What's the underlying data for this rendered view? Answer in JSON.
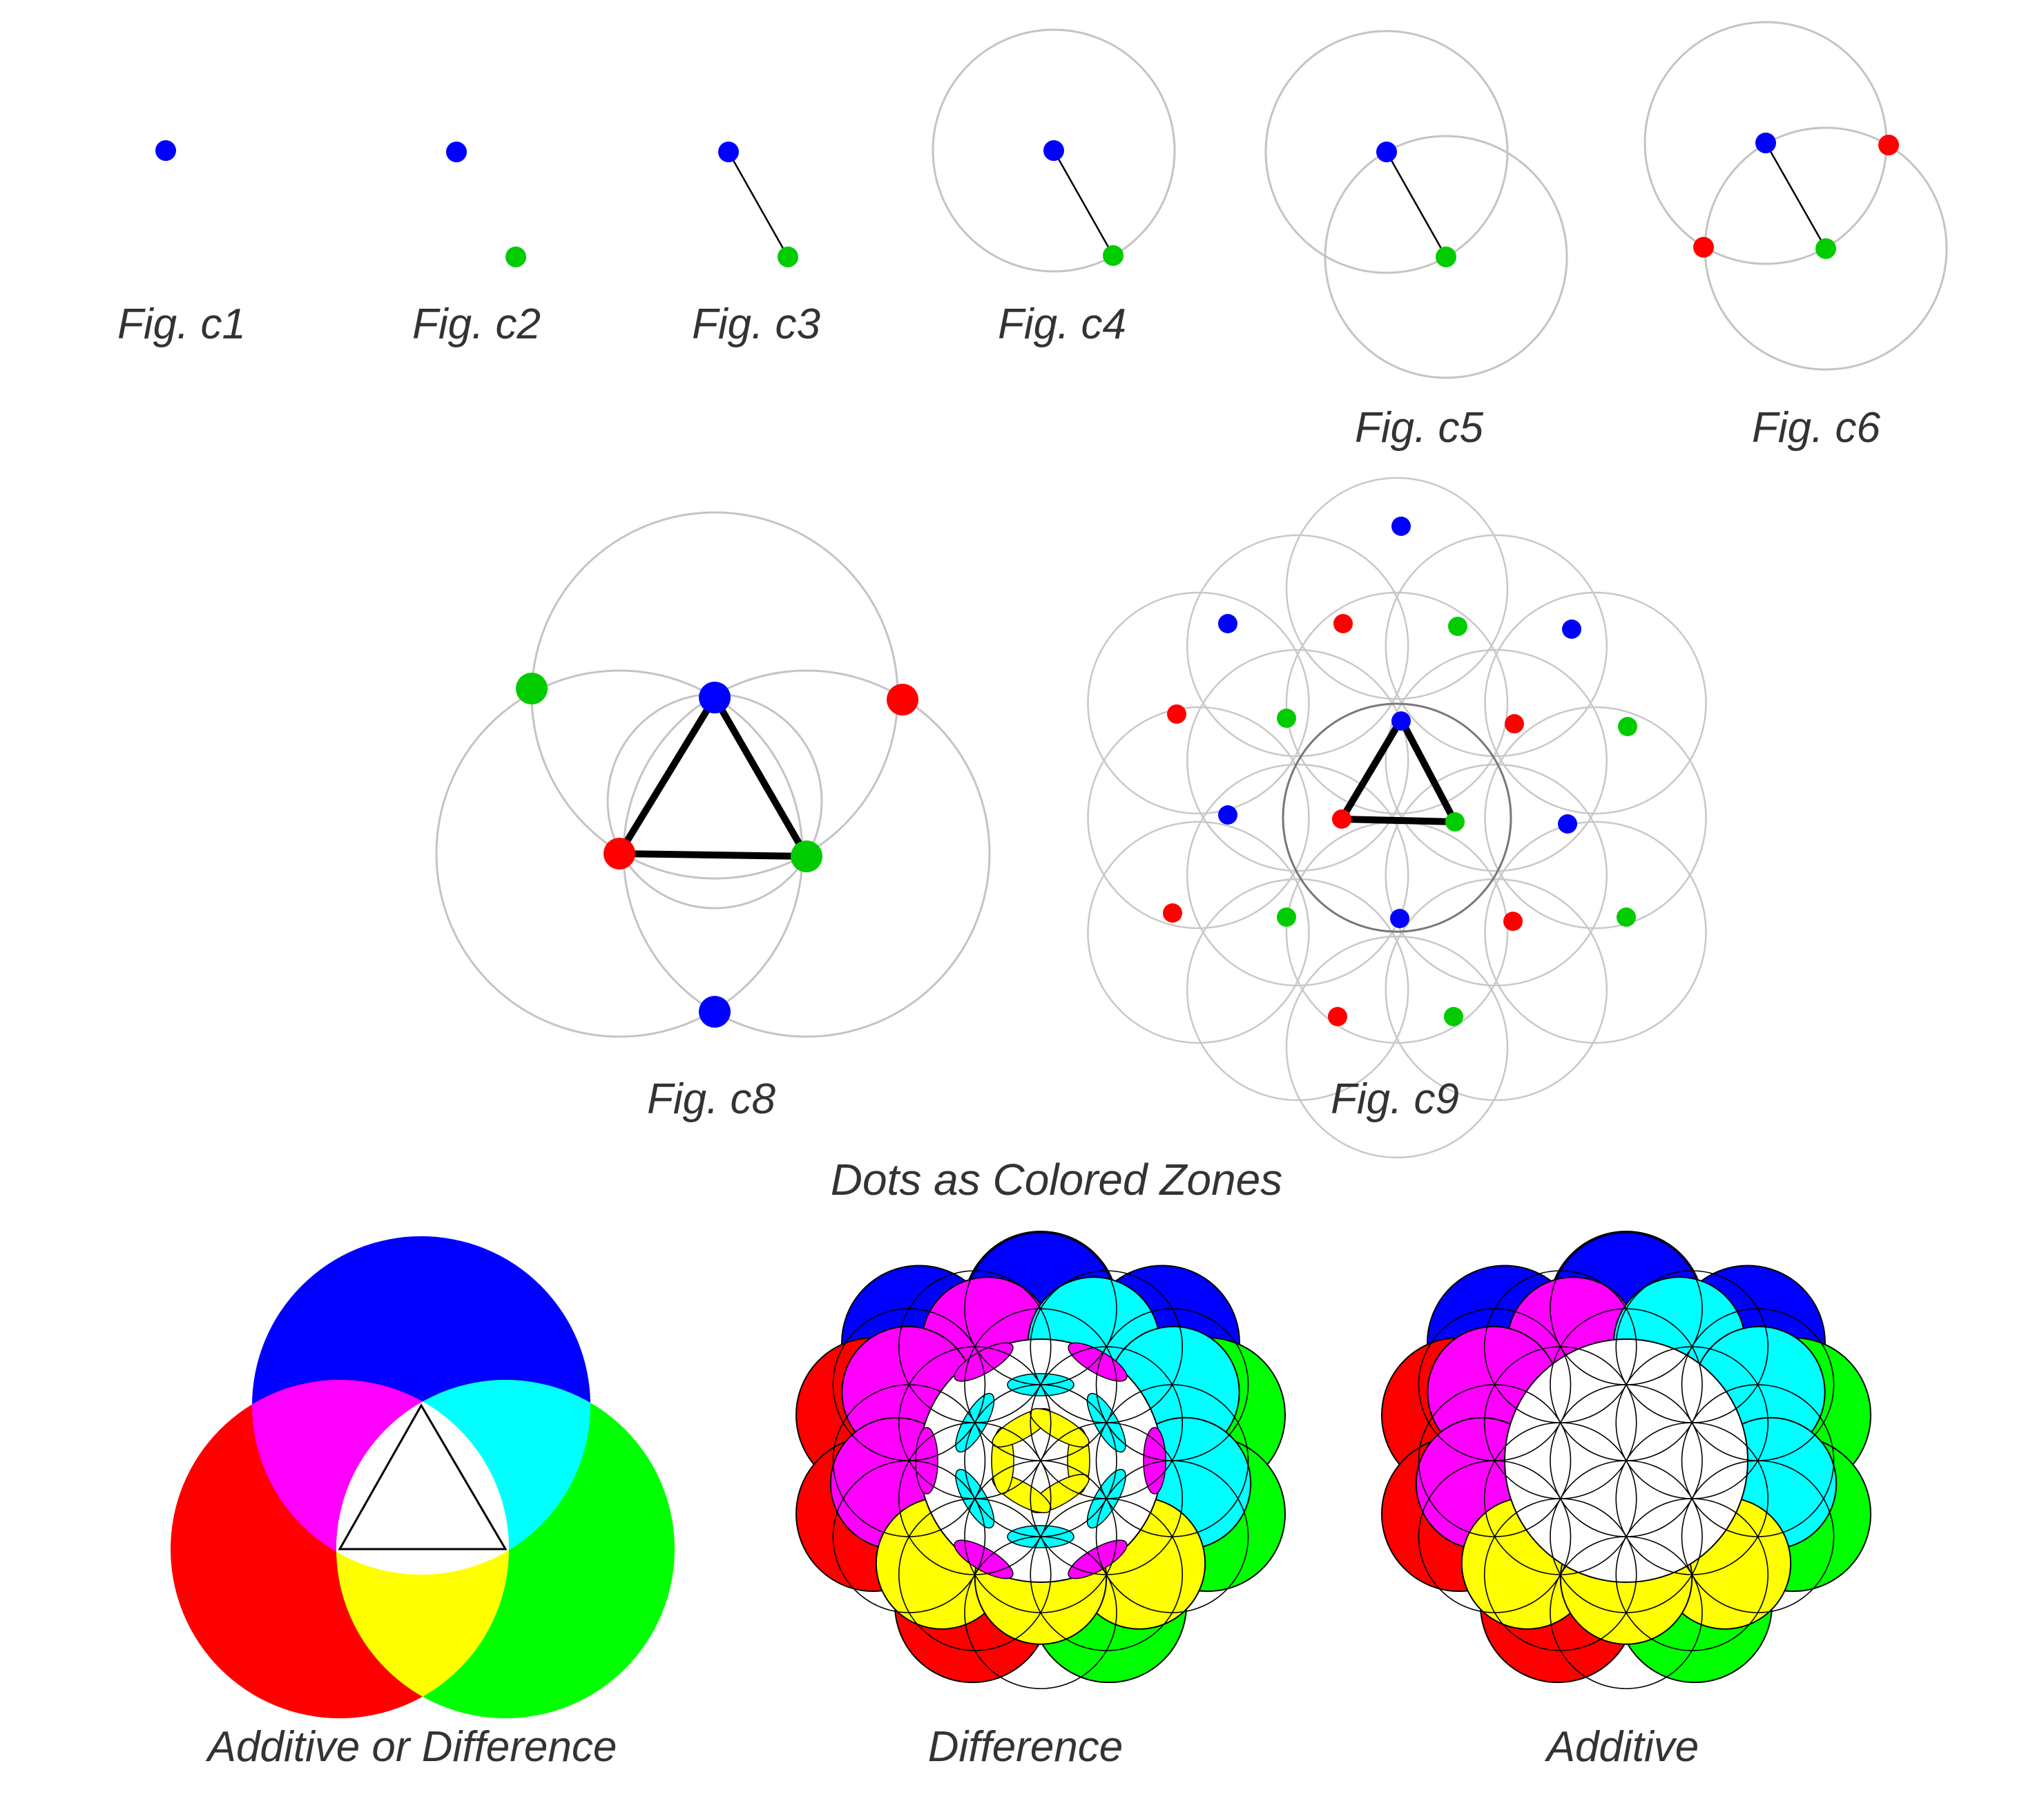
{
  "figures": [
    {
      "id": "c1",
      "label": "Fig. c1"
    },
    {
      "id": "c2",
      "label": "Fig. c2"
    },
    {
      "id": "c3",
      "label": "Fig. c3"
    },
    {
      "id": "c4",
      "label": "Fig. c4"
    },
    {
      "id": "c5",
      "label": "Fig. c5"
    },
    {
      "id": "c6",
      "label": "Fig. c6"
    },
    {
      "id": "c8",
      "label": "Fig. c8"
    },
    {
      "id": "c9",
      "label": "Fig. c9"
    }
  ],
  "section_title": "Dots as Colored Zones",
  "zone_labels": {
    "rgb_triple": "Additive or Difference",
    "difference": "Difference",
    "additive": "Additive"
  },
  "colors": {
    "blue": "#0000ff",
    "green": "#00cc00",
    "red": "#ff0000",
    "magenta": "#ff00ff",
    "cyan": "#00ffff",
    "yellow": "#ffff00",
    "zone_green": "#00ff00",
    "circle_grey": "#c4c4c4"
  }
}
